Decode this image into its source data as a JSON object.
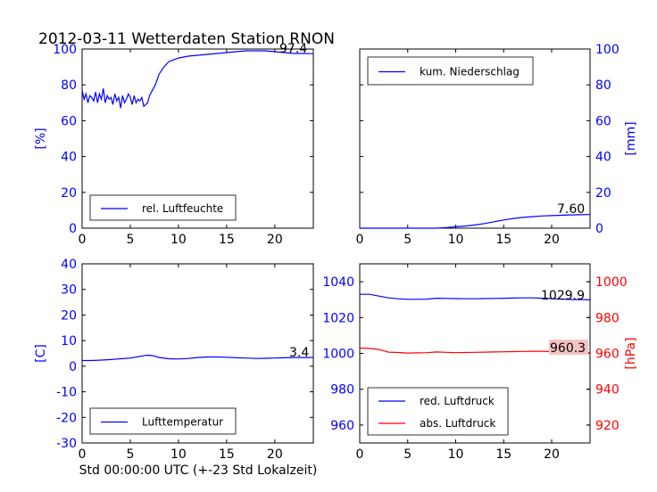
{
  "title": "2012-03-11 Wetterdaten Station RNON",
  "xlabel": "Std 00:00:00 UTC (+-23 Std Lokalzeit)",
  "colors": {
    "left_axis": "#0000ff",
    "right_axis": "#ff0000",
    "line_blue": "#0000ff",
    "line_red": "#ff0000"
  },
  "chart_data": [
    {
      "id": "humidity",
      "type": "line",
      "xlim": [
        0,
        24
      ],
      "ylim": [
        0,
        100
      ],
      "xticks": [
        0,
        5,
        10,
        15,
        20
      ],
      "yticks": [
        0,
        20,
        40,
        60,
        80,
        100
      ],
      "ylabel": "[%]",
      "ylabel_side": "left",
      "legend": {
        "placement": "lower-left"
      },
      "value_box": "97.4",
      "series": [
        {
          "name": "rel. Luftfeuchte",
          "color": "#0000ff",
          "x": [
            0,
            0.2,
            0.4,
            0.6,
            0.8,
            1.0,
            1.2,
            1.4,
            1.6,
            1.8,
            2.0,
            2.2,
            2.4,
            2.6,
            2.8,
            3.0,
            3.2,
            3.4,
            3.6,
            3.8,
            4.0,
            4.2,
            4.4,
            4.6,
            4.8,
            5.0,
            5.2,
            5.4,
            5.6,
            5.8,
            6.0,
            6.2,
            6.4,
            6.6,
            6.8,
            7.0,
            7.2,
            7.4,
            7.6,
            7.8,
            8.0,
            8.5,
            9.0,
            9.5,
            10.0,
            11,
            12,
            13,
            14,
            15,
            16,
            17,
            18,
            19,
            20,
            21,
            22,
            23,
            24
          ],
          "y": [
            77,
            72,
            75,
            70,
            74,
            73,
            71,
            76,
            70,
            75,
            72,
            78,
            70,
            74,
            72,
            73,
            69,
            75,
            71,
            73,
            67,
            74,
            70,
            72,
            75,
            73,
            69,
            74,
            70,
            72,
            71,
            73,
            68,
            69,
            70,
            74,
            76,
            78,
            80,
            83,
            86,
            90,
            93,
            94,
            95,
            96,
            96.5,
            97,
            97.5,
            98,
            98.5,
            99,
            99,
            99,
            98.5,
            98,
            97.5,
            97.5,
            97.4
          ]
        }
      ]
    },
    {
      "id": "precip",
      "type": "line",
      "xlim": [
        0,
        24
      ],
      "ylim": [
        0,
        100
      ],
      "xticks": [
        0,
        5,
        10,
        15,
        20
      ],
      "yticks": [
        0,
        20,
        40,
        60,
        80,
        100
      ],
      "ylabel": "[mm]",
      "ylabel_side": "right",
      "legend": {
        "placement": "upper-left"
      },
      "value_box": "7.60",
      "series": [
        {
          "name": "kum. Niederschlag",
          "color": "#0000ff",
          "x": [
            0,
            8,
            9,
            10,
            11,
            12,
            13,
            14,
            15,
            16,
            17,
            18,
            19,
            20,
            21,
            22,
            23,
            24
          ],
          "y": [
            0,
            0,
            0.3,
            0.8,
            1.2,
            1.8,
            2.6,
            3.6,
            4.6,
            5.4,
            6.0,
            6.4,
            6.8,
            7.0,
            7.2,
            7.4,
            7.5,
            7.6
          ]
        }
      ]
    },
    {
      "id": "temperature",
      "type": "line",
      "xlim": [
        0,
        24
      ],
      "ylim": [
        -30,
        40
      ],
      "xticks": [
        0,
        5,
        10,
        15,
        20
      ],
      "yticks": [
        -30,
        -20,
        -10,
        0,
        10,
        20,
        30,
        40
      ],
      "ylabel": "[C]",
      "ylabel_side": "left",
      "legend": {
        "placement": "lower-left"
      },
      "value_box": "3.4",
      "series": [
        {
          "name": "Lufttemperatur",
          "color": "#0000ff",
          "x": [
            0,
            1,
            2,
            3,
            4,
            5,
            6,
            6.5,
            7,
            7.5,
            8,
            9,
            10,
            11,
            12,
            13,
            14,
            15,
            16,
            17,
            18,
            19,
            20,
            21,
            22,
            23,
            24
          ],
          "y": [
            2.2,
            2.2,
            2.4,
            2.6,
            2.9,
            3.2,
            3.8,
            4.2,
            4.3,
            4.0,
            3.4,
            2.9,
            2.8,
            3.0,
            3.4,
            3.6,
            3.6,
            3.5,
            3.3,
            3.2,
            3.0,
            3.1,
            3.2,
            3.3,
            3.4,
            3.4,
            3.4
          ]
        }
      ]
    },
    {
      "id": "pressure",
      "type": "line",
      "xlim": [
        0,
        24
      ],
      "ylim": [
        950,
        1050
      ],
      "ylim_right": [
        910,
        1010
      ],
      "xticks": [
        0,
        5,
        10,
        15,
        20
      ],
      "yticks": [
        960,
        980,
        1000,
        1020,
        1040
      ],
      "yticks_right": [
        920,
        940,
        960,
        980,
        1000
      ],
      "ylabel": "[hPa]",
      "ylabel_side": "right",
      "legend": {
        "placement": "lower-left"
      },
      "value_box": "1029.9",
      "value_box_2": "960.3",
      "series": [
        {
          "name": "red. Luftdruck",
          "color": "#0000ff",
          "axis": "left",
          "x": [
            0,
            1,
            2,
            3,
            4,
            5,
            6,
            7,
            8,
            9,
            10,
            11,
            12,
            13,
            14,
            15,
            16,
            17,
            18,
            19,
            20,
            21,
            22,
            23,
            24
          ],
          "y": [
            1033,
            1033,
            1032,
            1031,
            1030.5,
            1030.2,
            1030.2,
            1030.3,
            1030.8,
            1030.7,
            1030.6,
            1030.5,
            1030.5,
            1030.6,
            1030.7,
            1030.8,
            1030.9,
            1031,
            1031,
            1030.8,
            1030.6,
            1030.3,
            1030.1,
            1030,
            1029.9
          ]
        },
        {
          "name": "abs. Luftdruck",
          "color": "#ff0000",
          "axis": "right",
          "x": [
            0,
            1,
            2,
            3,
            4,
            5,
            6,
            7,
            8,
            9,
            10,
            11,
            12,
            13,
            14,
            15,
            16,
            17,
            18,
            19,
            20,
            21,
            22,
            23,
            24
          ],
          "y": [
            963,
            962.8,
            962.2,
            960.7,
            960.5,
            960.2,
            960.3,
            960.4,
            960.8,
            960.6,
            960.4,
            960.5,
            960.6,
            960.7,
            960.8,
            960.9,
            961,
            961.1,
            961.2,
            961.2,
            961,
            960.8,
            960.6,
            960.4,
            960.3
          ]
        }
      ]
    }
  ]
}
